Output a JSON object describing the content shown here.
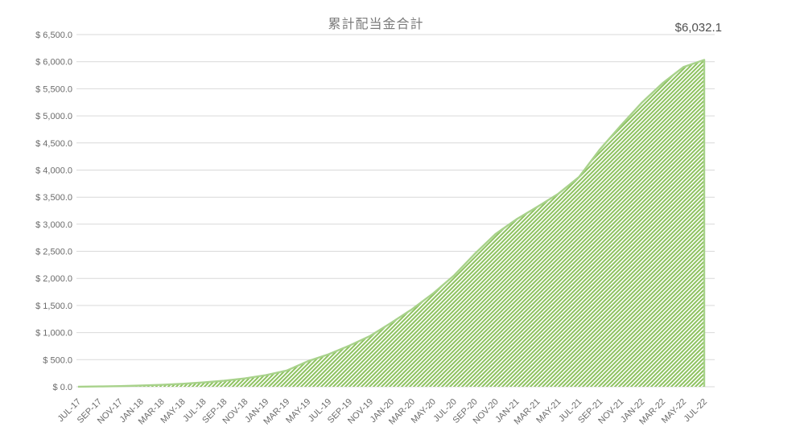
{
  "header": {
    "title": "累計配当金合計",
    "last_value_label": "$6,032.1"
  },
  "chart_data": {
    "type": "area",
    "title": "累計配当金合計",
    "categories": [
      "JUL-17",
      "SEP-17",
      "NOV-17",
      "JAN-18",
      "MAR-18",
      "MAY-18",
      "JUL-18",
      "SEP-18",
      "NOV-18",
      "JAN-19",
      "MAR-19",
      "MAY-19",
      "JUL-19",
      "SEP-19",
      "NOV-19",
      "JAN-20",
      "MAR-20",
      "MAY-20",
      "JUL-20",
      "SEP-20",
      "NOV-20",
      "JAN-21",
      "MAR-21",
      "MAY-21",
      "JUL-21",
      "SEP-21",
      "NOV-21",
      "JAN-22",
      "MAR-22",
      "MAY-22",
      "JUL-22"
    ],
    "values": [
      2,
      6,
      12,
      22,
      36,
      55,
      80,
      112,
      155,
      215,
      300,
      470,
      600,
      760,
      940,
      1180,
      1430,
      1720,
      2050,
      2450,
      2820,
      3090,
      3320,
      3560,
      3870,
      4380,
      4820,
      5240,
      5600,
      5900,
      6032.1
    ],
    "last_point_value": 6032.1,
    "last_point_label": "$6,032.1",
    "ylim": [
      0,
      6500
    ],
    "ytick_step": 500,
    "ytick_labels": [
      "$ 0.0",
      "$ 500.0",
      "$ 1,000.0",
      "$ 1,500.0",
      "$ 2,000.0",
      "$ 2,500.0",
      "$ 3,000.0",
      "$ 3,500.0",
      "$ 4,000.0",
      "$ 4,500.0",
      "$ 5,000.0",
      "$ 5,500.0",
      "$ 6,000.0",
      "$ 6,500.0"
    ],
    "xtick_rotation": -45,
    "grid": true,
    "legend": false,
    "fill_style": "diagonal-hatch",
    "colors": {
      "hatch_green": "#8cc15e",
      "hatch_bg": "#fbfdf8",
      "edge": "#a8d28b",
      "grid": "#d9d9d9",
      "title_text": "#7b7b7b",
      "axis_text": "#6b6b6b",
      "value_text": "#4f4f4f"
    }
  }
}
